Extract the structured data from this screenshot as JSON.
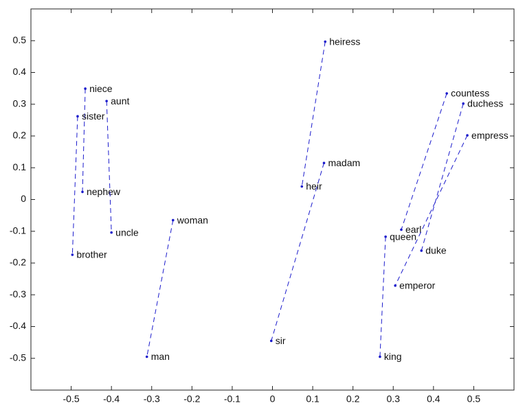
{
  "chart_data": {
    "type": "pair-scatter",
    "color": "#1a1acc",
    "line_style": "dashed",
    "xlim": [
      -0.6,
      0.6
    ],
    "ylim": [
      -0.6,
      0.6
    ],
    "xticks": [
      -0.5,
      -0.4,
      -0.3,
      -0.2,
      -0.1,
      0,
      0.1,
      0.2,
      0.3,
      0.4,
      0.5
    ],
    "yticks": [
      -0.5,
      -0.4,
      -0.3,
      -0.2,
      -0.1,
      0,
      0.1,
      0.2,
      0.3,
      0.4,
      0.5
    ],
    "pairs": [
      {
        "labels": [
          "heiress",
          "heir"
        ],
        "x": [
          0.131,
          0.073
        ],
        "y": [
          0.497,
          0.041
        ]
      },
      {
        "labels": [
          "madam",
          "sir"
        ],
        "x": [
          0.128,
          -0.003
        ],
        "y": [
          0.115,
          -0.445
        ]
      },
      {
        "labels": [
          "niece",
          "nephew"
        ],
        "x": [
          -0.465,
          -0.472
        ],
        "y": [
          0.349,
          0.024
        ]
      },
      {
        "labels": [
          "sister",
          "brother"
        ],
        "x": [
          -0.484,
          -0.497
        ],
        "y": [
          0.262,
          -0.174
        ]
      },
      {
        "labels": [
          "aunt",
          "uncle"
        ],
        "x": [
          -0.412,
          -0.4
        ],
        "y": [
          0.31,
          -0.104
        ]
      },
      {
        "labels": [
          "woman",
          "man"
        ],
        "x": [
          -0.247,
          -0.312
        ],
        "y": [
          -0.065,
          -0.495
        ]
      },
      {
        "labels": [
          "countess",
          "earl"
        ],
        "x": [
          0.433,
          0.32
        ],
        "y": [
          0.334,
          -0.095
        ]
      },
      {
        "labels": [
          "duchess",
          "duke"
        ],
        "x": [
          0.474,
          0.37
        ],
        "y": [
          0.302,
          -0.161
        ]
      },
      {
        "labels": [
          "empress",
          "emperor"
        ],
        "x": [
          0.484,
          0.305
        ],
        "y": [
          0.202,
          -0.271
        ]
      },
      {
        "labels": [
          "queen",
          "king"
        ],
        "x": [
          0.281,
          0.267
        ],
        "y": [
          -0.117,
          -0.495
        ]
      }
    ]
  }
}
